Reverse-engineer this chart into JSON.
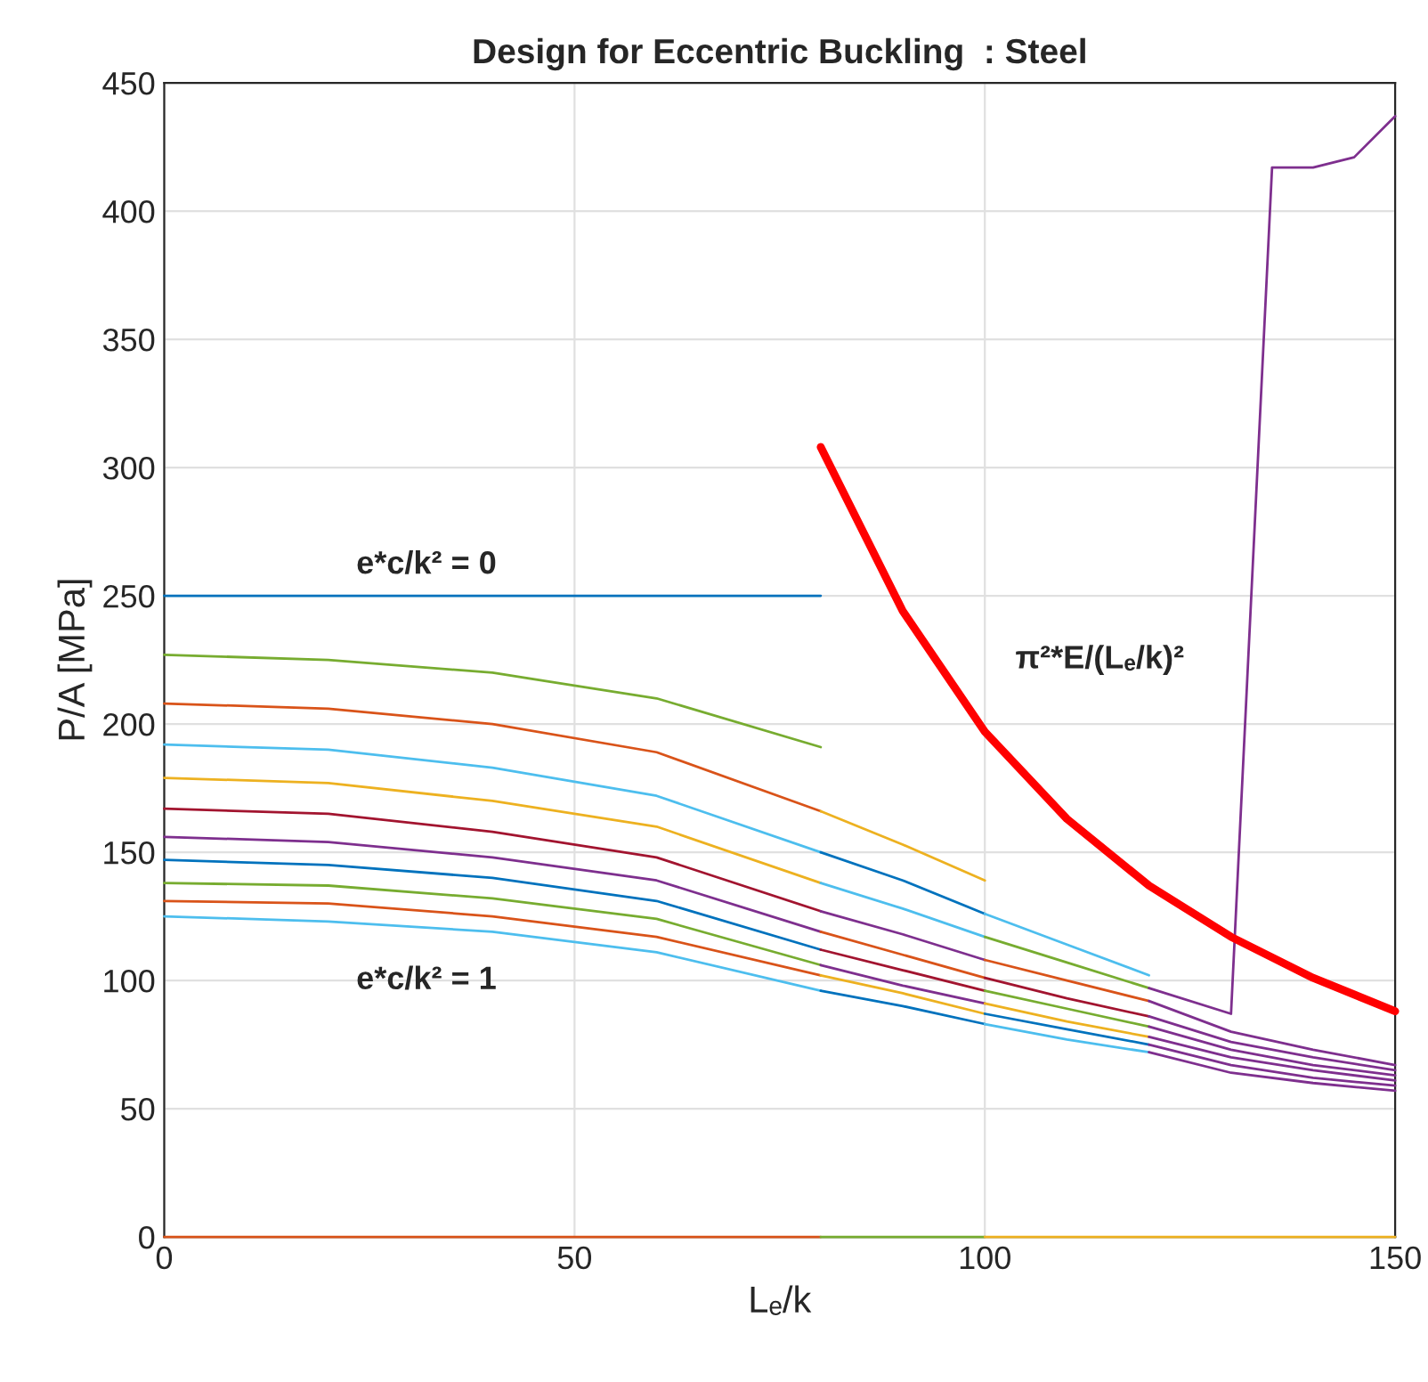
{
  "chart_data": {
    "type": "line",
    "title": "Design for Eccentric Buckling  : Steel",
    "xlabel": "Lₑ/k",
    "ylabel": "P/A [MPa]",
    "xlim": [
      0,
      150
    ],
    "xticks": [
      0,
      50,
      100,
      150
    ],
    "ylim": [
      0,
      450
    ],
    "yticks": [
      0,
      50,
      100,
      150,
      200,
      250,
      300,
      350,
      400,
      450
    ],
    "grid": true,
    "legend": false,
    "annotations": [
      "e*c/k² = 0",
      "e*c/k² = 1",
      "π²*E/(Lₑ/k)²"
    ],
    "series": [
      {
        "color": "#0072BD",
        "x": [
          0,
          80
        ],
        "values": [
          250,
          250
        ]
      },
      {
        "color": "#77AC30",
        "x": [
          0,
          20,
          40,
          60,
          80
        ],
        "values": [
          227,
          225,
          220,
          210,
          191
        ]
      },
      {
        "color": "#D95319",
        "x": [
          0,
          20,
          40,
          60,
          80
        ],
        "values": [
          208,
          206,
          200,
          189,
          166
        ]
      },
      {
        "color": "#4DBEEE",
        "x": [
          0,
          20,
          40,
          60,
          80
        ],
        "values": [
          192,
          190,
          183,
          172,
          150
        ]
      },
      {
        "color": "#EDB120",
        "x": [
          0,
          20,
          40,
          60,
          80
        ],
        "values": [
          179,
          177,
          170,
          160,
          138
        ]
      },
      {
        "color": "#A2142F",
        "x": [
          0,
          20,
          40,
          60,
          80
        ],
        "values": [
          167,
          165,
          158,
          148,
          127
        ]
      },
      {
        "color": "#7E2F8E",
        "x": [
          0,
          20,
          40,
          60,
          80
        ],
        "values": [
          156,
          154,
          148,
          139,
          119
        ]
      },
      {
        "color": "#0072BD",
        "x": [
          0,
          20,
          40,
          60,
          80
        ],
        "values": [
          147,
          145,
          140,
          131,
          112
        ]
      },
      {
        "color": "#77AC30",
        "x": [
          0,
          20,
          40,
          60,
          80
        ],
        "values": [
          138,
          137,
          132,
          124,
          106
        ]
      },
      {
        "color": "#D95319",
        "x": [
          0,
          20,
          40,
          60,
          80
        ],
        "values": [
          131,
          130,
          125,
          117,
          102
        ]
      },
      {
        "color": "#4DBEEE",
        "x": [
          0,
          20,
          40,
          60,
          80
        ],
        "values": [
          125,
          123,
          119,
          111,
          96
        ]
      },
      {
        "color": "#EDB120",
        "x": [
          80,
          90,
          100
        ],
        "values": [
          166,
          153,
          139
        ]
      },
      {
        "color": "#0072BD",
        "x": [
          80,
          90,
          100
        ],
        "values": [
          150,
          139,
          126
        ]
      },
      {
        "color": "#4DBEEE",
        "x": [
          80,
          90,
          100
        ],
        "values": [
          138,
          128,
          117
        ]
      },
      {
        "color": "#7E2F8E",
        "x": [
          80,
          90,
          100
        ],
        "values": [
          127,
          118,
          108
        ]
      },
      {
        "color": "#D95319",
        "x": [
          80,
          90,
          100
        ],
        "values": [
          119,
          110,
          101
        ]
      },
      {
        "color": "#A2142F",
        "x": [
          80,
          90,
          100
        ],
        "values": [
          112,
          104,
          96
        ]
      },
      {
        "color": "#7E2F8E",
        "x": [
          80,
          90,
          100
        ],
        "values": [
          106,
          98,
          91
        ]
      },
      {
        "color": "#EDB120",
        "x": [
          80,
          90,
          100
        ],
        "values": [
          102,
          95,
          87
        ]
      },
      {
        "color": "#0072BD",
        "x": [
          80,
          90,
          100
        ],
        "values": [
          96,
          90,
          83
        ]
      },
      {
        "color": "#4DBEEE",
        "x": [
          100,
          110,
          120
        ],
        "values": [
          126,
          114,
          102
        ]
      },
      {
        "color": "#77AC30",
        "x": [
          100,
          110,
          120
        ],
        "values": [
          117,
          107,
          97
        ]
      },
      {
        "color": "#D95319",
        "x": [
          100,
          110,
          120
        ],
        "values": [
          108,
          100,
          92
        ]
      },
      {
        "color": "#A2142F",
        "x": [
          100,
          110,
          120
        ],
        "values": [
          101,
          93,
          86
        ]
      },
      {
        "color": "#77AC30",
        "x": [
          100,
          110,
          120
        ],
        "values": [
          96,
          89,
          82
        ]
      },
      {
        "color": "#EDB120",
        "x": [
          100,
          110,
          120
        ],
        "values": [
          91,
          84,
          78
        ]
      },
      {
        "color": "#0072BD",
        "x": [
          100,
          110,
          120
        ],
        "values": [
          87,
          81,
          75
        ]
      },
      {
        "color": "#4DBEEE",
        "x": [
          100,
          110,
          120
        ],
        "values": [
          83,
          77,
          72
        ]
      },
      {
        "color": "#7E2F8E",
        "x": [
          120,
          130,
          135,
          140,
          145,
          150
        ],
        "values": [
          97,
          87,
          417,
          417,
          421,
          437
        ]
      },
      {
        "color": "#7E2F8E",
        "x": [
          120,
          130,
          140,
          150
        ],
        "values": [
          92,
          80,
          73,
          67
        ]
      },
      {
        "color": "#7E2F8E",
        "x": [
          120,
          130,
          140,
          150
        ],
        "values": [
          86,
          76,
          70,
          65
        ]
      },
      {
        "color": "#7E2F8E",
        "x": [
          120,
          130,
          140,
          150
        ],
        "values": [
          82,
          73,
          67,
          63
        ]
      },
      {
        "color": "#7E2F8E",
        "x": [
          120,
          130,
          140,
          150
        ],
        "values": [
          78,
          70,
          65,
          61
        ]
      },
      {
        "color": "#7E2F8E",
        "x": [
          120,
          130,
          140,
          150
        ],
        "values": [
          75,
          67,
          62,
          59
        ]
      },
      {
        "color": "#7E2F8E",
        "x": [
          120,
          130,
          140,
          150
        ],
        "values": [
          72,
          64,
          60,
          57
        ]
      },
      {
        "color": "#D95319",
        "x": [
          0,
          80
        ],
        "values": [
          0,
          0
        ]
      },
      {
        "color": "#77AC30",
        "x": [
          80,
          100
        ],
        "values": [
          0,
          0
        ]
      },
      {
        "color": "#EDB120",
        "x": [
          100,
          150
        ],
        "values": [
          0,
          0
        ]
      },
      {
        "color": "#FF0000",
        "x": [
          80,
          90,
          100,
          110,
          120,
          130,
          140,
          150
        ],
        "values": [
          308,
          244,
          197,
          163,
          137,
          117,
          101,
          88
        ]
      }
    ]
  }
}
